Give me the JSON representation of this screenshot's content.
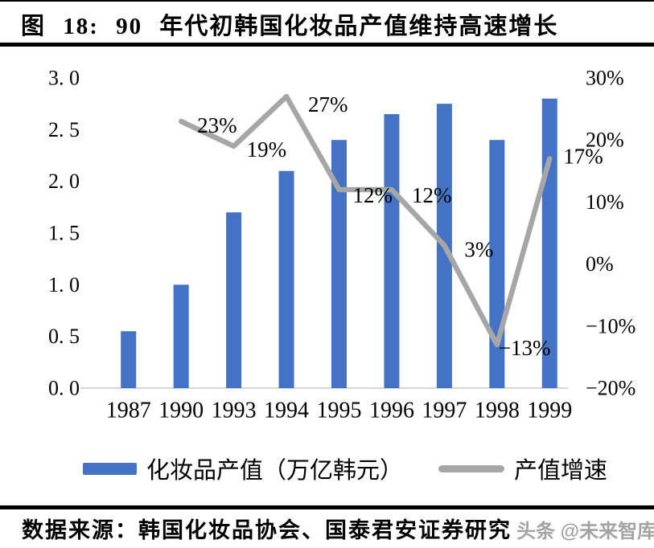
{
  "header": {
    "title": "图 18: 90 年代初韩国化妆品产值维持高速增长"
  },
  "chart_data": {
    "type": "bar",
    "subtype": "combo-bar-line-dual-axis",
    "title": "90 年代初韩国化妆品产值维持高速增长",
    "categories": [
      "1987",
      "1990",
      "1993",
      "1994",
      "1995",
      "1996",
      "1997",
      "1998",
      "1999"
    ],
    "series": [
      {
        "name": "化妆品产值（万亿韩元）",
        "type": "bar",
        "axis": "left",
        "color": "#4472C4",
        "values": [
          0.55,
          1.0,
          1.7,
          2.1,
          2.4,
          2.65,
          2.75,
          2.4,
          2.8
        ]
      },
      {
        "name": "产值增速",
        "type": "line",
        "axis": "right",
        "color": "#A6A6A6",
        "values": [
          null,
          23,
          19,
          27,
          12,
          12,
          3,
          -13,
          17
        ],
        "point_labels": [
          "",
          "23%",
          "19%",
          "27%",
          "12%",
          "12%",
          "3%",
          "−13%",
          "17%"
        ]
      }
    ],
    "left_axis": {
      "ticks": [
        "3. 0",
        "2. 5",
        "2. 0",
        "1. 5",
        "1. 0",
        "0. 5",
        "0. 0"
      ],
      "values": [
        3.0,
        2.5,
        2.0,
        1.5,
        1.0,
        0.5,
        0.0
      ],
      "range": [
        0,
        3.0
      ]
    },
    "right_axis": {
      "ticks": [
        "30%",
        "20%",
        "10%",
        "0%",
        "−10%",
        "−20%"
      ],
      "values": [
        30,
        20,
        10,
        0,
        -10,
        -20
      ],
      "range": [
        -20,
        30
      ]
    },
    "grid": false,
    "legend_position": "bottom",
    "axis_line_color": "#d6d6d6"
  },
  "legend": {
    "bar_label": "化妆品产值（万亿韩元）",
    "line_label": "产值增速"
  },
  "footer": {
    "source": "数据来源：韩国化妆品协会、国泰君安证券研究",
    "watermark": "头条 @未来智库"
  }
}
